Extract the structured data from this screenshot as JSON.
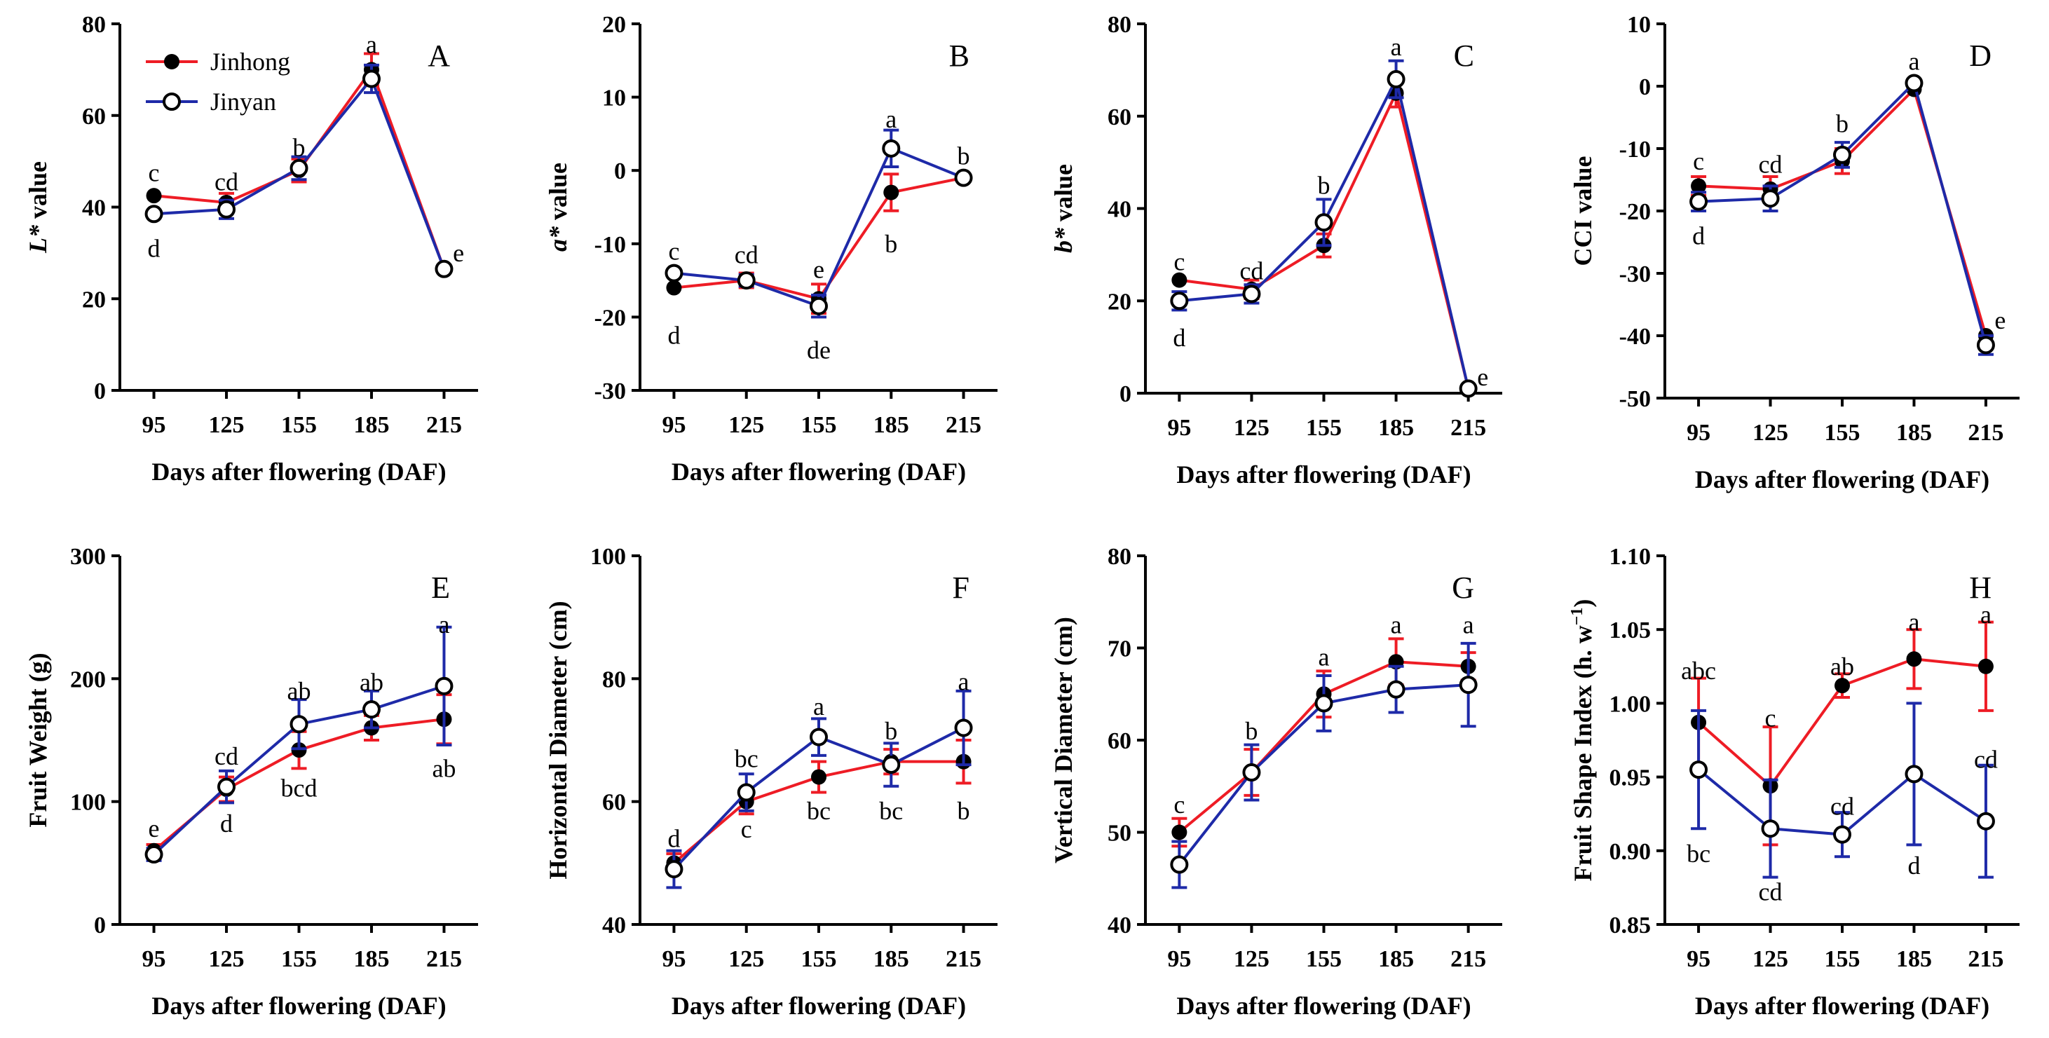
{
  "series_colors": {
    "Jinhong": "#ee1c25",
    "Jinyan": "#1e2aa8"
  },
  "legend": {
    "items": [
      "Jinhong",
      "Jinyan"
    ]
  },
  "chart_data": [
    {
      "id": "A",
      "type": "line",
      "panel_label": "A",
      "xlabel": "Days after flowering (DAF)",
      "ylabel_parts": [
        {
          "t": "L*",
          "i": true
        },
        {
          "t": " value",
          "i": false
        }
      ],
      "categories": [
        "95",
        "125",
        "155",
        "185",
        "215"
      ],
      "ylim": [
        0,
        80
      ],
      "yticks": [
        "0",
        "20",
        "40",
        "60",
        "80"
      ],
      "series": [
        {
          "name": "Jinhong",
          "values": [
            42.5,
            41,
            48,
            70,
            26.5
          ],
          "errors": [
            0,
            2,
            2.5,
            3.5,
            0
          ]
        },
        {
          "name": "Jinyan",
          "values": [
            38.5,
            39.5,
            48.5,
            68,
            26.5
          ],
          "errors": [
            0,
            2,
            2.5,
            3,
            0
          ]
        }
      ],
      "annotations": [
        {
          "text": "c",
          "x": 0,
          "y": 47.5
        },
        {
          "text": "d",
          "x": 0,
          "y": 31
        },
        {
          "text": "cd",
          "x": 1,
          "y": 45.5
        },
        {
          "text": "b",
          "x": 2,
          "y": 53
        },
        {
          "text": "a",
          "x": 3,
          "y": 75.5
        },
        {
          "text": "e",
          "x": 4.2,
          "y": 30
        }
      ]
    },
    {
      "id": "B",
      "type": "line",
      "panel_label": "B",
      "xlabel": "Days after flowering (DAF)",
      "ylabel_parts": [
        {
          "t": "a*",
          "i": true
        },
        {
          "t": " value",
          "i": false
        }
      ],
      "categories": [
        "95",
        "125",
        "155",
        "185",
        "215"
      ],
      "ylim": [
        -30,
        20
      ],
      "yticks": [
        "-30",
        "-20",
        "-10",
        "0",
        "10",
        "20"
      ],
      "series": [
        {
          "name": "Jinhong",
          "values": [
            -16,
            -15,
            -17.5,
            -3,
            -1
          ],
          "errors": [
            0,
            1,
            2,
            2.5,
            0
          ]
        },
        {
          "name": "Jinyan",
          "values": [
            -14,
            -15,
            -18.5,
            3,
            -1
          ],
          "errors": [
            0,
            0.8,
            1.5,
            2.5,
            0
          ]
        }
      ],
      "annotations": [
        {
          "text": "c",
          "x": 0,
          "y": -11
        },
        {
          "text": "d",
          "x": 0,
          "y": -22.5
        },
        {
          "text": "cd",
          "x": 1,
          "y": -11.5
        },
        {
          "text": "e",
          "x": 2,
          "y": -13.5
        },
        {
          "text": "de",
          "x": 2,
          "y": -24.5
        },
        {
          "text": "a",
          "x": 3,
          "y": 7
        },
        {
          "text": "b",
          "x": 3,
          "y": -10
        },
        {
          "text": "b",
          "x": 4,
          "y": 2
        }
      ]
    },
    {
      "id": "C",
      "type": "line",
      "panel_label": "C",
      "xlabel": "Days after flowering (DAF)",
      "ylabel_parts": [
        {
          "t": "b*",
          "i": true
        },
        {
          "t": " value",
          "i": false
        }
      ],
      "categories": [
        "95",
        "125",
        "155",
        "185",
        "215"
      ],
      "ylim": [
        0,
        80
      ],
      "yticks": [
        "0",
        "20",
        "40",
        "60",
        "80"
      ],
      "series": [
        {
          "name": "Jinhong",
          "values": [
            24.5,
            22.5,
            32,
            65,
            1
          ],
          "errors": [
            0,
            2,
            2.5,
            3,
            0
          ]
        },
        {
          "name": "Jinyan",
          "values": [
            20,
            21.5,
            37,
            68,
            1
          ],
          "errors": [
            2,
            2,
            5,
            4,
            0
          ]
        }
      ],
      "annotations": [
        {
          "text": "c",
          "x": 0,
          "y": 28.5
        },
        {
          "text": "d",
          "x": 0,
          "y": 12
        },
        {
          "text": "cd",
          "x": 1,
          "y": 26.5
        },
        {
          "text": "b",
          "x": 2,
          "y": 45
        },
        {
          "text": "a",
          "x": 3,
          "y": 75
        },
        {
          "text": "e",
          "x": 4.2,
          "y": 3.5
        }
      ]
    },
    {
      "id": "D",
      "type": "line",
      "panel_label": "D",
      "xlabel": "Days after flowering (DAF)",
      "ylabel_parts": [
        {
          "t": "CCI value",
          "i": false
        }
      ],
      "categories": [
        "95",
        "125",
        "155",
        "185",
        "215"
      ],
      "ylim": [
        -50,
        10
      ],
      "yticks": [
        "-50",
        "-40",
        "-30",
        "-20",
        "-10",
        "0",
        "10"
      ],
      "series": [
        {
          "name": "Jinhong",
          "values": [
            -16,
            -16.5,
            -12,
            -0.5,
            -40
          ],
          "errors": [
            1.5,
            2,
            2,
            0,
            0
          ]
        },
        {
          "name": "Jinyan",
          "values": [
            -18.5,
            -18,
            -11,
            0.5,
            -41.5
          ],
          "errors": [
            1.5,
            2,
            2,
            0,
            1.5
          ]
        }
      ],
      "annotations": [
        {
          "text": "c",
          "x": 0,
          "y": -12
        },
        {
          "text": "d",
          "x": 0,
          "y": -24
        },
        {
          "text": "cd",
          "x": 1,
          "y": -12.5
        },
        {
          "text": "b",
          "x": 2,
          "y": -6
        },
        {
          "text": "a",
          "x": 3,
          "y": 4
        },
        {
          "text": "e",
          "x": 4.2,
          "y": -37.5
        }
      ]
    },
    {
      "id": "E",
      "type": "line",
      "panel_label": "E",
      "xlabel": "Days after flowering (DAF)",
      "ylabel_parts": [
        {
          "t": "Fruit Weight (g)",
          "i": false
        }
      ],
      "categories": [
        "95",
        "125",
        "155",
        "185",
        "215"
      ],
      "ylim": [
        0,
        300
      ],
      "yticks": [
        "0",
        "100",
        "200",
        "300"
      ],
      "series": [
        {
          "name": "Jinhong",
          "values": [
            60,
            110,
            142,
            160,
            167
          ],
          "errors": [
            5,
            10,
            15,
            10,
            20
          ]
        },
        {
          "name": "Jinyan",
          "values": [
            57,
            112,
            163,
            175,
            194
          ],
          "errors": [
            5,
            13,
            20,
            15,
            48
          ]
        }
      ],
      "annotations": [
        {
          "text": "e",
          "x": 0,
          "y": 78
        },
        {
          "text": "cd",
          "x": 1,
          "y": 137
        },
        {
          "text": "d",
          "x": 1,
          "y": 82
        },
        {
          "text": "ab",
          "x": 2,
          "y": 190
        },
        {
          "text": "bcd",
          "x": 2,
          "y": 111
        },
        {
          "text": "ab",
          "x": 3,
          "y": 197
        },
        {
          "text": "a",
          "x": 4,
          "y": 244
        },
        {
          "text": "ab",
          "x": 4,
          "y": 127
        }
      ]
    },
    {
      "id": "F",
      "type": "line",
      "panel_label": "F",
      "xlabel": "Days after flowering (DAF)",
      "ylabel_parts": [
        {
          "t": "Horizontal Diameter (cm)",
          "i": false
        }
      ],
      "categories": [
        "95",
        "125",
        "155",
        "185",
        "215"
      ],
      "ylim": [
        40,
        100
      ],
      "yticks": [
        "40",
        "60",
        "80",
        "100"
      ],
      "series": [
        {
          "name": "Jinhong",
          "values": [
            50,
            60,
            64,
            66.5,
            66.5
          ],
          "errors": [
            1.5,
            2,
            2.5,
            2,
            3.5
          ]
        },
        {
          "name": "Jinyan",
          "values": [
            49,
            61.5,
            70.5,
            66,
            72
          ],
          "errors": [
            3,
            3,
            3,
            3.5,
            6
          ]
        }
      ],
      "annotations": [
        {
          "text": "d",
          "x": 0,
          "y": 54
        },
        {
          "text": "bc",
          "x": 1,
          "y": 67
        },
        {
          "text": "c",
          "x": 1,
          "y": 55.5
        },
        {
          "text": "a",
          "x": 2,
          "y": 75.5
        },
        {
          "text": "bc",
          "x": 2,
          "y": 58.5
        },
        {
          "text": "b",
          "x": 3,
          "y": 71.5
        },
        {
          "text": "bc",
          "x": 3,
          "y": 58.5
        },
        {
          "text": "a",
          "x": 4,
          "y": 79.5
        },
        {
          "text": "b",
          "x": 4,
          "y": 58.5
        }
      ]
    },
    {
      "id": "G",
      "type": "line",
      "panel_label": "G",
      "xlabel": "Days after flowering (DAF)",
      "ylabel_parts": [
        {
          "t": "Vertical Diameter (cm)",
          "i": false
        }
      ],
      "categories": [
        "95",
        "125",
        "155",
        "185",
        "215"
      ],
      "ylim": [
        40,
        80
      ],
      "yticks": [
        "40",
        "50",
        "60",
        "70",
        "80"
      ],
      "series": [
        {
          "name": "Jinhong",
          "values": [
            50,
            56.5,
            65,
            68.5,
            68
          ],
          "errors": [
            1.5,
            2.5,
            2.5,
            2.5,
            1.5
          ]
        },
        {
          "name": "Jinyan",
          "values": [
            46.5,
            56.5,
            64,
            65.5,
            66
          ],
          "errors": [
            2.5,
            3,
            3,
            2.5,
            4.5
          ]
        }
      ],
      "annotations": [
        {
          "text": "c",
          "x": 0,
          "y": 53
        },
        {
          "text": "b",
          "x": 1,
          "y": 61
        },
        {
          "text": "a",
          "x": 2,
          "y": 69
        },
        {
          "text": "a",
          "x": 3,
          "y": 72.5
        },
        {
          "text": "a",
          "x": 4,
          "y": 72.5
        }
      ]
    },
    {
      "id": "H",
      "type": "line",
      "panel_label": "H",
      "xlabel": "Days after flowering (DAF)",
      "ylabel_parts": [
        {
          "t": "Fruit Shape Index (h. w",
          "i": false
        },
        {
          "t": "−1",
          "i": false,
          "sup": true
        },
        {
          "t": ")",
          "i": false
        }
      ],
      "categories": [
        "95",
        "125",
        "155",
        "185",
        "215"
      ],
      "ylim": [
        0.85,
        1.1
      ],
      "yticks": [
        "0.85",
        "0.90",
        "0.95",
        "1.00",
        "1.05",
        "1.10"
      ],
      "series": [
        {
          "name": "Jinhong",
          "values": [
            0.987,
            0.944,
            1.012,
            1.03,
            1.025
          ],
          "errors": [
            0.03,
            0.04,
            0.008,
            0.02,
            0.03
          ]
        },
        {
          "name": "Jinyan",
          "values": [
            0.955,
            0.915,
            0.911,
            0.952,
            0.92
          ],
          "errors": [
            0.04,
            0.033,
            0.015,
            0.048,
            0.038
          ]
        }
      ],
      "annotations": [
        {
          "text": "abc",
          "x": 0,
          "y": 1.022
        },
        {
          "text": "bc",
          "x": 0,
          "y": 0.898
        },
        {
          "text": "c",
          "x": 1,
          "y": 0.99
        },
        {
          "text": "cd",
          "x": 1,
          "y": 0.872
        },
        {
          "text": "ab",
          "x": 2,
          "y": 1.025
        },
        {
          "text": "cd",
          "x": 2,
          "y": 0.93
        },
        {
          "text": "a",
          "x": 3,
          "y": 1.055
        },
        {
          "text": "d",
          "x": 3,
          "y": 0.89
        },
        {
          "text": "a",
          "x": 4,
          "y": 1.06
        },
        {
          "text": "cd",
          "x": 4,
          "y": 0.962
        }
      ]
    }
  ]
}
